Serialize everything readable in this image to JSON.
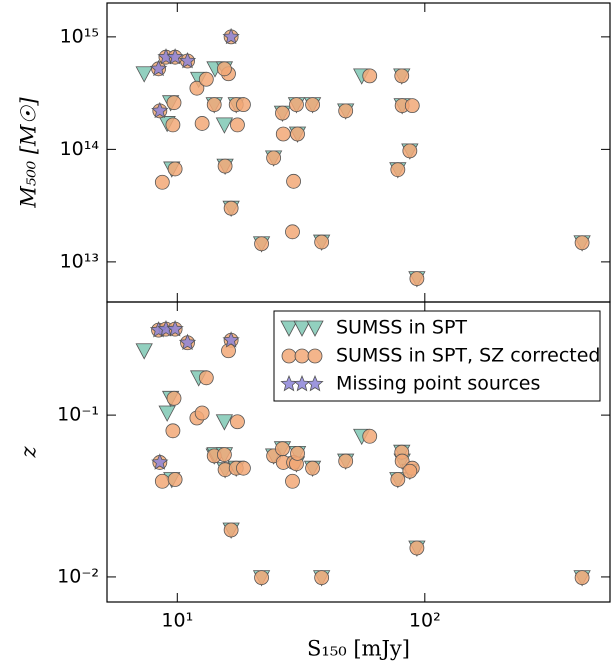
{
  "chart_data": [
    {
      "type": "scatter",
      "ylabel": "M₅₀₀ [M☉]",
      "log_x": true,
      "log_y": true,
      "xlim": [
        5.2,
        560
      ],
      "ylim": [
        4400000000000.0,
        2000000000000000.0
      ],
      "xticks": [
        10,
        100
      ],
      "yticks": [
        {
          "value": 10000000000000.0,
          "label": "10¹³"
        },
        {
          "value": 100000000000000.0,
          "label": "10¹⁴"
        },
        {
          "value": 1000000000000000.0,
          "label": "10¹⁵"
        }
      ],
      "series": [
        {
          "color": "#7fc8b4",
          "marker": "triangle",
          "x": [
            7.35,
            9.1,
            9.4,
            9.5,
            12.2,
            14.1,
            14.2,
            15.5,
            15.5,
            15.6,
            16.5,
            17.3,
            21.9,
            24.5,
            26.6,
            30.3,
            30.6,
            35.2,
            38.3,
            47.9,
            55.6,
            77.8,
            80.7,
            81,
            87,
            92.9,
            432
          ],
          "values": [
            470000000000000.0,
            170000000000000.0,
            260000000000000.0,
            67000000000000.0,
            420000000000000.0,
            250000000000000.0,
            520000000000000.0,
            520000000000000.0,
            165000000000000.0,
            71000000000000.0,
            30000000000000.0,
            250000000000000.0,
            14500000000000.0,
            84000000000000.0,
            210000000000000.0,
            250000000000000.0,
            137000000000000.0,
            250000000000000.0,
            15000000000000.0,
            220000000000000.0,
            450000000000000.0,
            66000000000000.0,
            450000000000000.0,
            245000000000000.0,
            97000000000000.0,
            7100000000000.0,
            14800000000000.0
          ]
        },
        {
          "color": "#f2a877",
          "marker": "circle",
          "x": [
            8.4,
            9.0,
            8.5,
            8.7,
            9.6,
            9.8,
            9.7,
            11.0,
            12.0,
            12.6,
            9.8,
            16.5,
            16.1,
            13.1,
            14.1,
            15.5,
            15.6,
            16.5,
            17.5,
            17.3,
            18.5,
            21.9,
            24.5,
            26.6,
            26.8,
            29.2,
            29.5,
            30.3,
            30.6,
            35.2,
            38.3,
            47.9,
            77.8,
            59.9,
            80.7,
            81,
            89,
            87,
            92.9,
            432
          ],
          "values": [
            520000000000000.0,
            660000000000000.0,
            220000000000000.0,
            51000000000000.0,
            165000000000000.0,
            67000000000000.0,
            260000000000000.0,
            610000000000000.0,
            350000000000000.0,
            170000000000000.0,
            660000000000000.0,
            1000000000000000.0,
            470000000000000.0,
            420000000000000.0,
            250000000000000.0,
            520000000000000.0,
            71000000000000.0,
            30000000000000.0,
            165000000000000.0,
            250000000000000.0,
            250000000000000.0,
            14500000000000.0,
            84000000000000.0,
            210000000000000.0,
            137000000000000.0,
            18500000000000.0,
            52000000000000.0,
            250000000000000.0,
            137000000000000.0,
            250000000000000.0,
            15000000000000.0,
            220000000000000.0,
            66000000000000.0,
            450000000000000.0,
            450000000000000.0,
            245000000000000.0,
            245000000000000.0,
            97000000000000.0,
            7100000000000.0,
            14800000000000.0
          ]
        },
        {
          "color": "#8c84d8",
          "marker": "star",
          "x": [
            8.4,
            9.0,
            8.5,
            9.8,
            11.0,
            16.5
          ],
          "values": [
            520000000000000.0,
            660000000000000.0,
            220000000000000.0,
            660000000000000.0,
            610000000000000.0,
            1000000000000000.0
          ]
        }
      ]
    },
    {
      "type": "scatter",
      "ylabel": "z",
      "xlabel": "S₁₅₀ [mJy]",
      "log_x": true,
      "log_y": true,
      "xlim": [
        5.2,
        560
      ],
      "ylim": [
        0.007,
        0.5
      ],
      "xticks": [
        {
          "value": 10,
          "label": "10¹"
        },
        {
          "value": 100,
          "label": "10²"
        }
      ],
      "yticks": [
        {
          "value": 0.01,
          "label": "10⁻²"
        },
        {
          "value": 0.1,
          "label": "10⁻¹"
        }
      ],
      "legend": "upper right",
      "series": [
        {
          "name": "SUMSS in SPT",
          "color": "#7fc8b4",
          "marker": "triangle",
          "x": [
            7.35,
            9.1,
            9.4,
            9.5,
            12.2,
            14.1,
            14.2,
            15.5,
            15.5,
            15.6,
            16.5,
            17.3,
            21.9,
            24.5,
            26.6,
            30.3,
            30.6,
            35.2,
            38.3,
            47.9,
            55.6,
            77.8,
            80.7,
            81,
            87,
            92.9,
            432
          ],
          "values": [
            0.25,
            0.103,
            0.127,
            0.04,
            0.17,
            0.056,
            0.057,
            0.057,
            0.091,
            0.046,
            0.0195,
            0.047,
            0.0099,
            0.056,
            0.062,
            0.05,
            0.058,
            0.047,
            0.0099,
            0.052,
            0.074,
            0.04,
            0.059,
            0.052,
            0.045,
            0.0151,
            0.0099
          ]
        },
        {
          "name": "SUMSS in SPT, SZ corrected",
          "color": "#f2a877",
          "marker": "circle",
          "x": [
            8.4,
            9.0,
            8.5,
            8.7,
            9.6,
            9.8,
            9.7,
            11.0,
            12.0,
            12.6,
            9.8,
            16.5,
            16.1,
            13.1,
            14.1,
            15.5,
            15.6,
            16.5,
            17.5,
            17.3,
            18.5,
            21.9,
            24.5,
            26.6,
            26.8,
            29.2,
            29.5,
            30.3,
            30.6,
            35.2,
            38.3,
            47.9,
            77.8,
            59.9,
            80.7,
            81,
            89,
            87,
            92.9,
            432
          ],
          "values": [
            0.335,
            0.34,
            0.051,
            0.039,
            0.08,
            0.04,
            0.127,
            0.28,
            0.096,
            0.103,
            0.34,
            0.29,
            0.25,
            0.17,
            0.056,
            0.057,
            0.046,
            0.0195,
            0.091,
            0.047,
            0.047,
            0.0099,
            0.056,
            0.062,
            0.051,
            0.039,
            0.051,
            0.05,
            0.058,
            0.047,
            0.0099,
            0.052,
            0.04,
            0.074,
            0.059,
            0.052,
            0.047,
            0.045,
            0.0151,
            0.0099
          ]
        },
        {
          "name": "Missing point sources",
          "color": "#8c84d8",
          "marker": "star",
          "x": [
            8.4,
            9.0,
            8.5,
            9.8,
            11.0,
            16.5
          ],
          "values": [
            0.335,
            0.34,
            0.051,
            0.34,
            0.28,
            0.29
          ]
        }
      ]
    }
  ]
}
